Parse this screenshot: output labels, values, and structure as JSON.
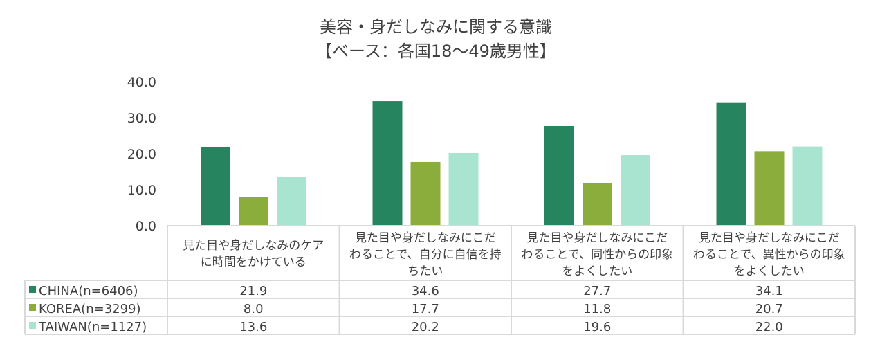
{
  "chart_data": {
    "type": "bar",
    "title": "美容・身だしなみに関する意識",
    "subtitle": "【ベース：各国18～49歳男性】",
    "categories": [
      [
        "見た目や身だしなみのケア",
        "に時間をかけている"
      ],
      [
        "見た目や身だしなみにこだ",
        "わることで、自分に自信を持",
        "ちたい"
      ],
      [
        "見た目や身だしなみにこだ",
        "わることで、同性からの印象",
        "をよくしたい"
      ],
      [
        "見た目や身だしなみにこだ",
        "わることで、異性からの印象",
        "をよくしたい"
      ]
    ],
    "series": [
      {
        "name": "CHINA(n=6406)",
        "color": "#26845f",
        "values": [
          21.9,
          34.6,
          27.7,
          34.1
        ]
      },
      {
        "name": "KOREA(n=3299)",
        "color": "#8aad3c",
        "values": [
          8.0,
          17.7,
          11.8,
          20.7
        ]
      },
      {
        "name": "TAIWAN(n=1127)",
        "color": "#a8e4d0",
        "values": [
          13.6,
          20.2,
          19.6,
          22.0
        ]
      }
    ],
    "ylim": [
      0,
      40
    ],
    "yticks": [
      "0.0",
      "10.0",
      "20.0",
      "30.0",
      "40.0"
    ],
    "grid": false,
    "legend": "data-table"
  }
}
